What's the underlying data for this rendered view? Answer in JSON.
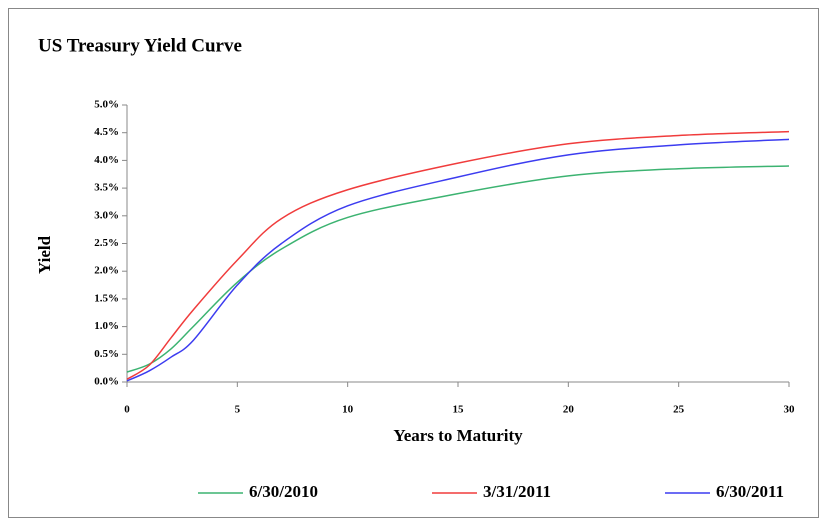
{
  "chart_data": {
    "type": "line",
    "title": "US Treasury Yield Curve",
    "x_label": "Years to Maturity",
    "y_label": "Yield",
    "x": [
      0,
      1,
      2,
      3,
      5,
      7,
      10,
      15,
      20,
      25,
      30
    ],
    "series": [
      {
        "name": "6/30/2010",
        "color": "#3cb371",
        "values": [
          0.18,
          0.32,
          0.6,
          1.0,
          1.8,
          2.4,
          2.97,
          3.4,
          3.72,
          3.85,
          3.9
        ]
      },
      {
        "name": "3/31/2011",
        "color": "#f03c3c",
        "values": [
          0.05,
          0.3,
          0.8,
          1.3,
          2.2,
          2.95,
          3.47,
          3.95,
          4.3,
          4.45,
          4.52
        ]
      },
      {
        "name": "6/30/2011",
        "color": "#3c3cf0",
        "values": [
          0.02,
          0.2,
          0.45,
          0.75,
          1.75,
          2.5,
          3.18,
          3.7,
          4.1,
          4.28,
          4.38
        ]
      }
    ],
    "xlim": [
      0,
      30
    ],
    "xticks": [
      0,
      5,
      10,
      15,
      20,
      25,
      30
    ],
    "ylim": [
      0,
      5
    ],
    "yticks": [
      {
        "value": 0,
        "label": "0.0%"
      },
      {
        "value": 0.5,
        "label": "0.5%"
      },
      {
        "value": 1,
        "label": "1.0%"
      },
      {
        "value": 1.5,
        "label": "1.5%"
      },
      {
        "value": 2,
        "label": "2.0%"
      },
      {
        "value": 2.5,
        "label": "2.5%"
      },
      {
        "value": 3,
        "label": "3.0%"
      },
      {
        "value": 3.5,
        "label": "3.5%"
      },
      {
        "value": 4,
        "label": "4.0%"
      },
      {
        "value": 4.5,
        "label": "4.5%"
      },
      {
        "value": 5,
        "label": "5.0%"
      }
    ],
    "legend": "bottom"
  }
}
